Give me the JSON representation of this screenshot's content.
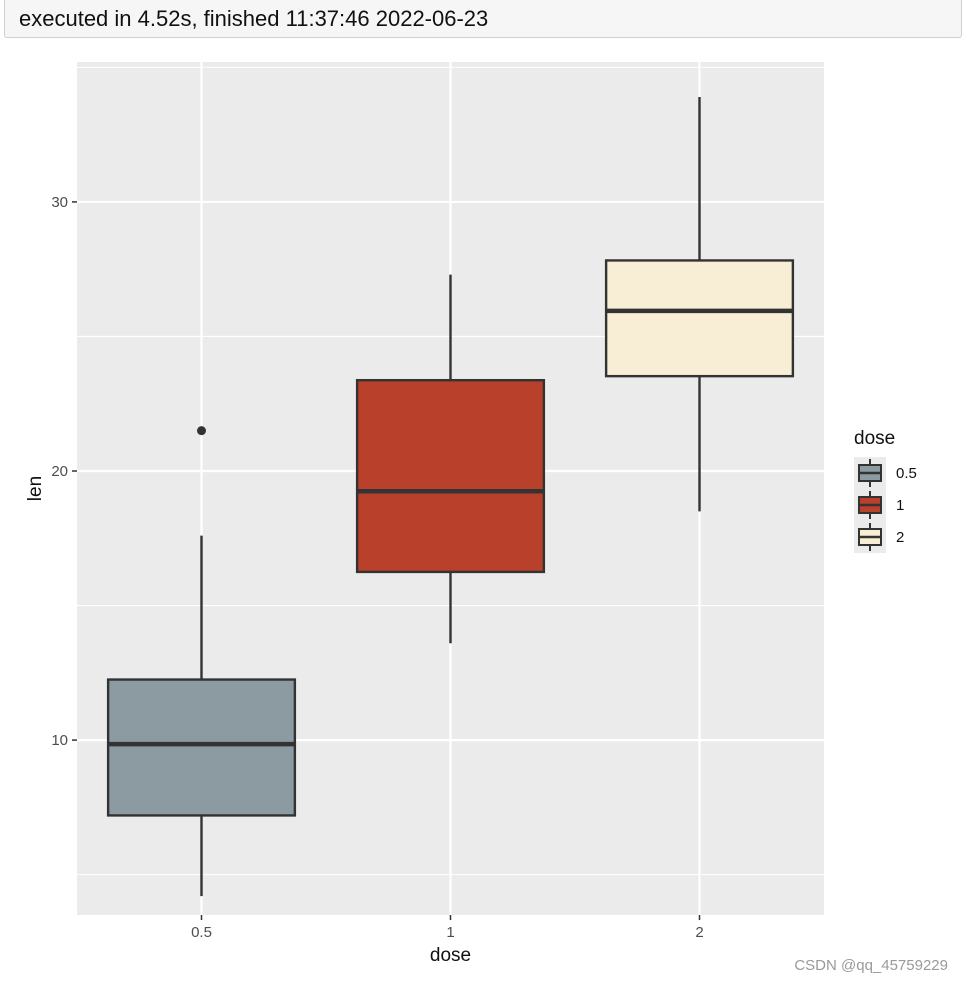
{
  "execution": {
    "status_text": "executed in 4.52s, finished 11:37:46 2022-06-23"
  },
  "watermark": "CSDN @qq_45759229",
  "chart_data": {
    "type": "boxplot",
    "title": "",
    "xlabel": "dose",
    "ylabel": "len",
    "categories": [
      "0.5",
      "1",
      "2"
    ],
    "ylim": [
      3.5,
      35.2
    ],
    "y_ticks": [
      10,
      20,
      30
    ],
    "y_tick_labels": [
      "10",
      "20",
      "30"
    ],
    "grid": true,
    "legend": {
      "title": "dose",
      "position": "right",
      "entries": [
        "0.5",
        "1",
        "2"
      ]
    },
    "colors": {
      "0.5": "#8c9ba1",
      "1": "#b9402a",
      "2": "#f8eed5",
      "panel_bg": "#ebebeb",
      "grid": "#ffffff",
      "outline": "#333333"
    },
    "boxes": [
      {
        "category": "0.5",
        "whisker_low": 4.2,
        "q1": 7.2,
        "median": 9.85,
        "q3": 12.25,
        "whisker_high": 17.6,
        "outliers": [
          21.5
        ]
      },
      {
        "category": "1",
        "whisker_low": 13.6,
        "q1": 16.25,
        "median": 19.25,
        "q3": 23.375,
        "whisker_high": 27.3,
        "outliers": []
      },
      {
        "category": "2",
        "whisker_low": 18.5,
        "q1": 23.525,
        "median": 25.95,
        "q3": 27.825,
        "whisker_high": 33.9,
        "outliers": []
      }
    ]
  }
}
